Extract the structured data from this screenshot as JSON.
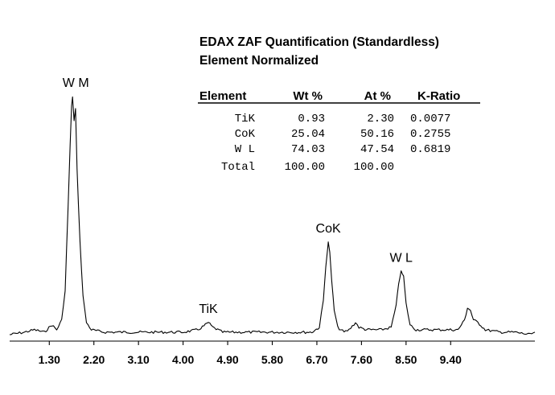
{
  "quant": {
    "title_line1": "EDAX ZAF Quantification (Standardless)",
    "title_line2": "Element Normalized",
    "headers": [
      "Element",
      "Wt %",
      "At %",
      "K-Ratio"
    ],
    "rows": [
      [
        "TiK",
        "0.93",
        "2.30",
        "0.0077"
      ],
      [
        "CoK",
        "25.04",
        "50.16",
        "0.2755"
      ],
      [
        "W L",
        "74.03",
        "47.54",
        "0.6819"
      ],
      [
        "Total",
        "100.00",
        "100.00",
        ""
      ]
    ]
  },
  "chart_data": {
    "type": "line",
    "xlabel": "",
    "ylabel": "",
    "xlim": [
      0.5,
      11.1
    ],
    "ylim": [
      0,
      100
    ],
    "grid": false,
    "xticks": [
      1.3,
      2.2,
      3.1,
      4.0,
      4.9,
      5.8,
      6.7,
      7.6,
      8.5,
      9.4
    ],
    "xtick_labels": [
      "1.30",
      "2.20",
      "3.10",
      "4.00",
      "4.90",
      "5.80",
      "6.70",
      "7.60",
      "8.50",
      "9.40"
    ],
    "peaks": [
      {
        "label": "W M",
        "x": 1.77,
        "y": 100
      },
      {
        "label": "TiK",
        "x": 4.51,
        "y": 7
      },
      {
        "label": "CoK",
        "x": 6.93,
        "y": 40
      },
      {
        "label": "W L",
        "x": 8.4,
        "y": 28
      }
    ],
    "series": [
      {
        "values": [
          [
            0.5,
            2
          ],
          [
            0.8,
            3
          ],
          [
            1.0,
            4
          ],
          [
            1.2,
            3
          ],
          [
            1.35,
            6
          ],
          [
            1.45,
            4
          ],
          [
            1.55,
            8
          ],
          [
            1.62,
            20
          ],
          [
            1.68,
            55
          ],
          [
            1.72,
            80
          ],
          [
            1.75,
            96
          ],
          [
            1.77,
            100
          ],
          [
            1.8,
            90
          ],
          [
            1.83,
            95
          ],
          [
            1.86,
            70
          ],
          [
            1.92,
            40
          ],
          [
            1.98,
            18
          ],
          [
            2.05,
            7
          ],
          [
            2.15,
            4
          ],
          [
            2.4,
            3
          ],
          [
            2.8,
            3
          ],
          [
            3.2,
            3
          ],
          [
            3.6,
            3
          ],
          [
            4.0,
            3
          ],
          [
            4.3,
            4
          ],
          [
            4.45,
            6
          ],
          [
            4.51,
            7
          ],
          [
            4.6,
            5
          ],
          [
            4.8,
            3
          ],
          [
            5.2,
            3
          ],
          [
            5.6,
            3
          ],
          [
            6.0,
            3
          ],
          [
            6.4,
            3
          ],
          [
            6.6,
            3
          ],
          [
            6.75,
            5
          ],
          [
            6.83,
            16
          ],
          [
            6.88,
            30
          ],
          [
            6.92,
            38
          ],
          [
            6.93,
            40
          ],
          [
            6.96,
            36
          ],
          [
            7.0,
            24
          ],
          [
            7.05,
            12
          ],
          [
            7.12,
            5
          ],
          [
            7.25,
            3
          ],
          [
            7.35,
            4
          ],
          [
            7.48,
            7
          ],
          [
            7.55,
            5
          ],
          [
            7.7,
            4
          ],
          [
            8.0,
            4
          ],
          [
            8.2,
            5
          ],
          [
            8.3,
            14
          ],
          [
            8.35,
            23
          ],
          [
            8.4,
            28
          ],
          [
            8.45,
            26
          ],
          [
            8.5,
            15
          ],
          [
            8.58,
            6
          ],
          [
            8.7,
            4
          ],
          [
            9.0,
            4
          ],
          [
            9.3,
            4
          ],
          [
            9.55,
            4
          ],
          [
            9.68,
            8
          ],
          [
            9.74,
            13
          ],
          [
            9.8,
            12
          ],
          [
            9.86,
            8
          ],
          [
            9.95,
            7
          ],
          [
            10.1,
            4
          ],
          [
            10.4,
            3
          ],
          [
            10.7,
            3
          ],
          [
            11.0,
            2
          ],
          [
            11.1,
            3
          ]
        ]
      }
    ]
  }
}
